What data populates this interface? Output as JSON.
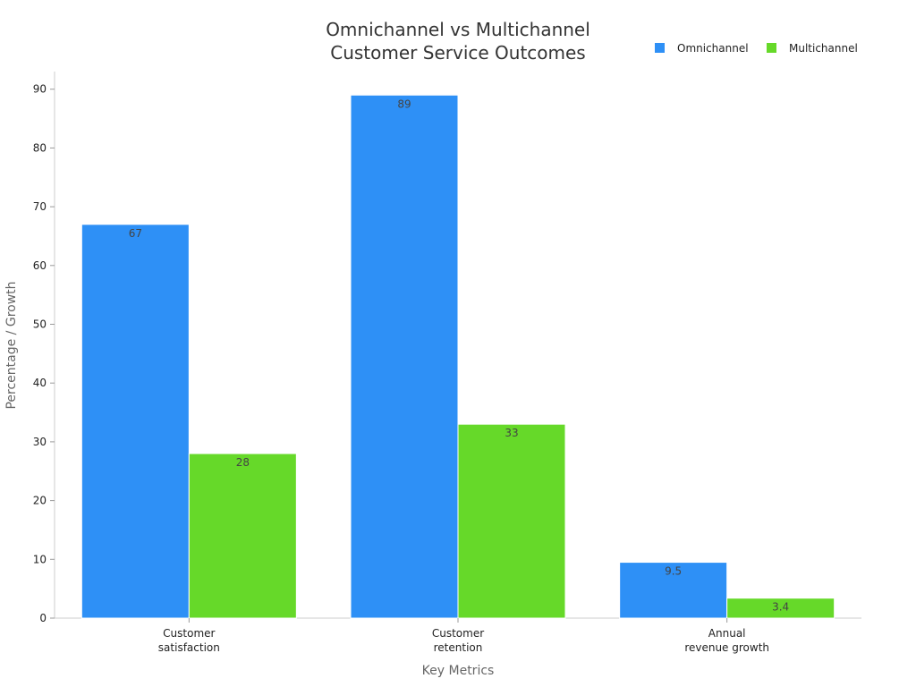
{
  "chart_data": {
    "type": "bar",
    "title_lines": [
      "Omnichannel vs Multichannel",
      "Customer Service Outcomes"
    ],
    "xlabel": "Key Metrics",
    "ylabel": "Percentage / Growth",
    "categories": [
      [
        "Customer",
        "satisfaction"
      ],
      [
        "Customer",
        "retention"
      ],
      [
        "Annual",
        "revenue growth"
      ]
    ],
    "series": [
      {
        "name": "Omnichannel",
        "color": "#2E90F6",
        "values": [
          67,
          89,
          9.5
        ]
      },
      {
        "name": "Multichannel",
        "color": "#66D929",
        "values": [
          28,
          33,
          3.4
        ]
      }
    ],
    "ylim": [
      0,
      93
    ],
    "yticks": [
      0,
      10,
      20,
      30,
      40,
      50,
      60,
      70,
      80,
      90
    ],
    "grid": false,
    "legend_position": "top-right"
  }
}
